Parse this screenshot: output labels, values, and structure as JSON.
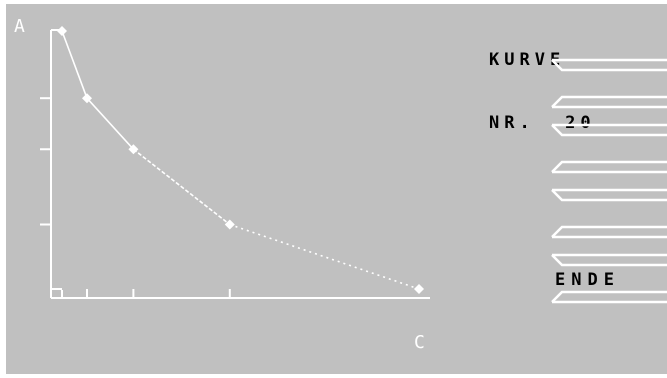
{
  "plot": {
    "y_axis_label": "A",
    "x_axis_label": "C",
    "line_color": "#ffffff",
    "points": [
      {
        "x": 0,
        "y": 100
      },
      {
        "x": 7,
        "y": 75
      },
      {
        "x": 20,
        "y": 56
      },
      {
        "x": 47,
        "y": 28
      },
      {
        "x": 100,
        "y": 4
      }
    ],
    "x_ticks": [
      7,
      20,
      47
    ],
    "y_ticks": [
      75,
      56,
      28
    ]
  },
  "title": {
    "line1": "KURVE",
    "line2": "NR.  20"
  },
  "softkeys": [
    {
      "label": ""
    },
    {
      "label": ""
    },
    {
      "label": ""
    },
    {
      "label": "ENDE"
    }
  ]
}
